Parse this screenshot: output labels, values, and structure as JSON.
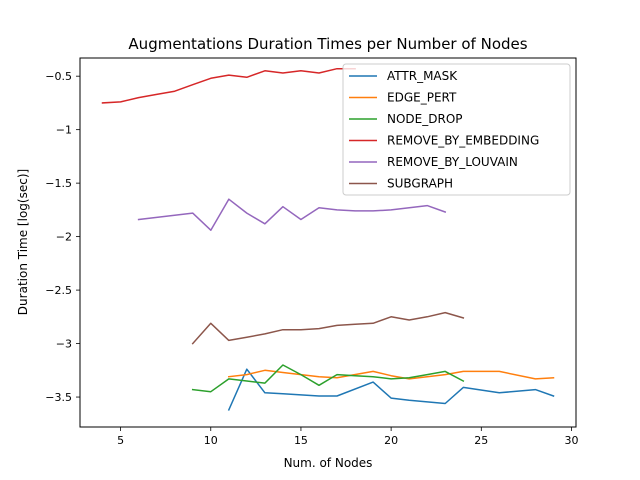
{
  "chart_data": {
    "type": "line",
    "title": "Augmentations Duration Times per Number of Nodes",
    "xlabel": "Num. of Nodes",
    "ylabel": "Duration Time [log(sec)]",
    "xlim": [
      2.75,
      30.25
    ],
    "ylim": [
      -3.78,
      -0.33
    ],
    "xticks": [
      5,
      10,
      15,
      20,
      25,
      30
    ],
    "yticks": [
      -3.5,
      -3.0,
      -2.5,
      -2.0,
      -1.5,
      -1.0,
      -0.5
    ],
    "grid": false,
    "legend_position": "top-right",
    "series": [
      {
        "name": "ATTR_MASK",
        "color": "#1f77b4",
        "x": [
          11,
          12,
          13,
          14,
          15,
          16,
          17,
          19,
          20,
          21,
          23,
          24,
          26,
          28,
          29
        ],
        "y": [
          -3.62,
          -3.24,
          -3.46,
          -3.47,
          -3.48,
          -3.49,
          -3.49,
          -3.36,
          -3.51,
          -3.53,
          -3.56,
          -3.41,
          -3.46,
          -3.43,
          -3.49
        ]
      },
      {
        "name": "EDGE_PERT",
        "color": "#ff7f0e",
        "x": [
          11,
          12,
          13,
          14,
          15,
          16,
          17,
          19,
          20,
          21,
          22,
          23,
          24,
          26,
          28,
          29
        ],
        "y": [
          -3.31,
          -3.29,
          -3.25,
          -3.27,
          -3.29,
          -3.31,
          -3.32,
          -3.26,
          -3.3,
          -3.33,
          -3.31,
          -3.29,
          -3.26,
          -3.26,
          -3.33,
          -3.32
        ]
      },
      {
        "name": "NODE_DROP",
        "color": "#2ca02c",
        "x": [
          9,
          10,
          11,
          12,
          13,
          14,
          15,
          16,
          17,
          18,
          19,
          20,
          21,
          22,
          23,
          24
        ],
        "y": [
          -3.43,
          -3.45,
          -3.33,
          -3.35,
          -3.37,
          -3.2,
          -3.29,
          -3.39,
          -3.29,
          -3.3,
          -3.31,
          -3.33,
          -3.32,
          -3.29,
          -3.26,
          -3.35
        ]
      },
      {
        "name": "REMOVE_BY_EMBEDDING",
        "color": "#d62728",
        "x": [
          4,
          5,
          6,
          7,
          8,
          9,
          10,
          11,
          12,
          13,
          14,
          15,
          16,
          17,
          18
        ],
        "y": [
          -0.75,
          -0.74,
          -0.7,
          -0.67,
          -0.64,
          -0.58,
          -0.52,
          -0.49,
          -0.51,
          -0.45,
          -0.47,
          -0.45,
          -0.47,
          -0.43,
          -0.43
        ]
      },
      {
        "name": "REMOVE_BY_LOUVAIN",
        "color": "#9467bd",
        "x": [
          6,
          7,
          8,
          9,
          10,
          11,
          12,
          13,
          14,
          15,
          16,
          17,
          18,
          19,
          20,
          21,
          22,
          23
        ],
        "y": [
          -1.84,
          -1.82,
          -1.8,
          -1.78,
          -1.94,
          -1.65,
          -1.78,
          -1.88,
          -1.72,
          -1.84,
          -1.73,
          -1.75,
          -1.76,
          -1.76,
          -1.75,
          -1.73,
          -1.71,
          -1.77
        ]
      },
      {
        "name": "SUBGRAPH",
        "color": "#8c564b",
        "x": [
          9,
          10,
          11,
          12,
          13,
          14,
          15,
          16,
          17,
          18,
          19,
          20,
          21,
          22,
          23,
          24
        ],
        "y": [
          -3.0,
          -2.81,
          -2.97,
          -2.94,
          -2.91,
          -2.87,
          -2.87,
          -2.86,
          -2.83,
          -2.82,
          -2.81,
          -2.75,
          -2.78,
          -2.75,
          -2.71,
          -2.76
        ]
      }
    ]
  }
}
